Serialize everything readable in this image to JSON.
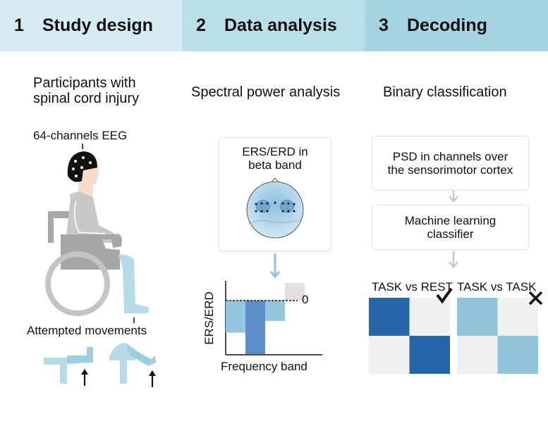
{
  "header": {
    "steps": [
      {
        "number": "1",
        "title": "Study design",
        "color": "#d7ebf3"
      },
      {
        "number": "2",
        "title": "Data analysis",
        "color": "#badfe8"
      },
      {
        "number": "3",
        "title": "Decoding",
        "color": "#a6d4e0"
      }
    ]
  },
  "study": {
    "subtitle_line1": "Participants with",
    "subtitle_line2": "spinal cord injury",
    "eeg_label": "64-channels EEG",
    "movements_label": "Attempted movements"
  },
  "analysis": {
    "subtitle": "Spectral power analysis",
    "box_line1": "ERS/ERD in",
    "box_line2": "beta band",
    "y_label": "ERS/ERD",
    "x_label": "Frequency band",
    "zero_label": "0",
    "bars": [
      {
        "value": -0.6,
        "color": "#94c6e0"
      },
      {
        "value": -1.0,
        "color": "#5b8fc8"
      },
      {
        "value": -0.38,
        "color": "#94c6e0"
      },
      {
        "value": 0.33,
        "color": "#e6e1e1"
      }
    ]
  },
  "decoding": {
    "subtitle": "Binary classification",
    "step1_line1": "PSD in channels over",
    "step1_line2": "the sensorimotor cortex",
    "step2_line1": "Machine learning",
    "step2_line2": "classifier",
    "matrices": [
      {
        "label": "TASK vs REST",
        "result_icon": "checkmark-icon",
        "diag_color": "#2565a8",
        "off_color": "#eff0f2"
      },
      {
        "label": "TASK vs TASK",
        "result_icon": "cross-icon",
        "diag_color": "#91c3dd",
        "off_color": "#eff0f2"
      }
    ]
  }
}
